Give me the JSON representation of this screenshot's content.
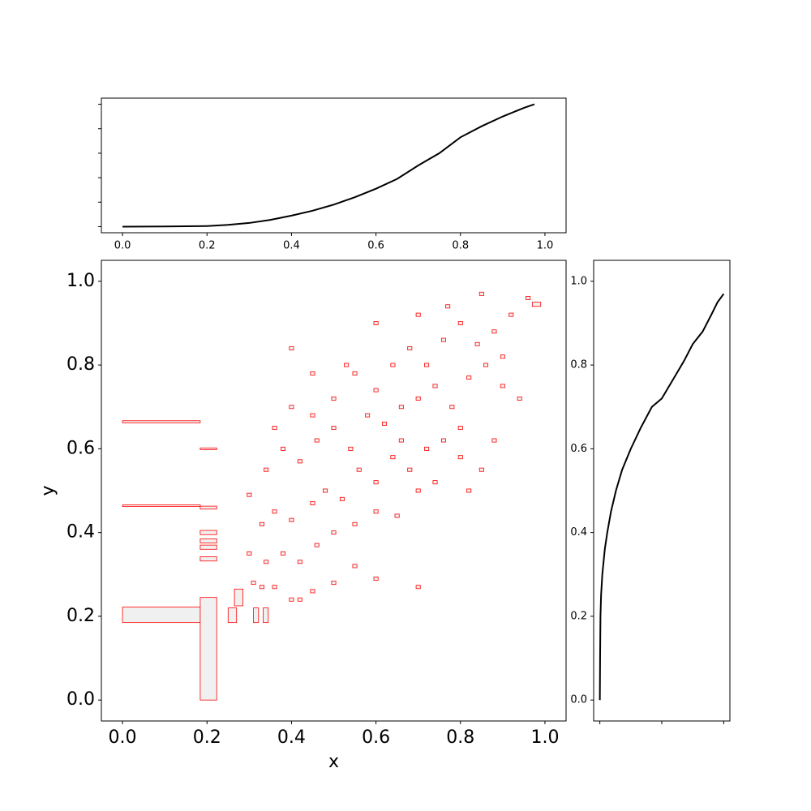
{
  "chart_data": [
    {
      "type": "rectangles",
      "xlabel": "x",
      "ylabel": "y",
      "xlim": [
        -0.05,
        1.05
      ],
      "ylim": [
        -0.05,
        1.05
      ],
      "xticks": [
        {
          "value": 0,
          "label": "0.0"
        },
        0.2,
        0.4,
        0.6,
        0.8,
        {
          "value": 1,
          "label": "1.0"
        }
      ],
      "yticks": [
        {
          "value": 0,
          "label": "0.0"
        },
        0.2,
        0.4,
        0.6,
        0.8,
        {
          "value": 1,
          "label": "1.0"
        }
      ],
      "color": "#ff0000",
      "fill": "#f0f0f0",
      "boxes": [
        [
          0,
          0.184,
          0.185,
          0.222
        ],
        [
          0.184,
          0.223,
          0,
          0.245
        ],
        [
          0,
          0.184,
          0.662,
          0.667
        ],
        [
          0,
          0.184,
          0.462,
          0.466
        ],
        [
          0.184,
          0.223,
          0.598,
          0.602
        ],
        [
          0.184,
          0.223,
          0.456,
          0.463
        ],
        [
          0.184,
          0.223,
          0.395,
          0.405
        ],
        [
          0.184,
          0.223,
          0.375,
          0.385
        ],
        [
          0.184,
          0.223,
          0.36,
          0.37
        ],
        [
          0.184,
          0.223,
          0.332,
          0.342
        ],
        [
          0.25,
          0.27,
          0.185,
          0.22
        ],
        [
          0.265,
          0.285,
          0.225,
          0.265
        ],
        [
          0.31,
          0.322,
          0.185,
          0.22
        ],
        [
          0.333,
          0.345,
          0.185,
          0.22
        ],
        [
          0.305,
          0.315,
          0.276,
          0.284
        ],
        [
          0.325,
          0.335,
          0.266,
          0.274
        ],
        [
          0.355,
          0.365,
          0.266,
          0.274
        ],
        [
          0.395,
          0.405,
          0.236,
          0.244
        ],
        [
          0.415,
          0.425,
          0.236,
          0.244
        ],
        [
          0.445,
          0.455,
          0.256,
          0.264
        ],
        [
          0.495,
          0.505,
          0.276,
          0.284
        ],
        [
          0.545,
          0.555,
          0.316,
          0.324
        ],
        [
          0.595,
          0.605,
          0.286,
          0.294
        ],
        [
          0.695,
          0.705,
          0.266,
          0.274
        ],
        [
          0.295,
          0.305,
          0.346,
          0.354
        ],
        [
          0.335,
          0.345,
          0.326,
          0.334
        ],
        [
          0.375,
          0.385,
          0.346,
          0.354
        ],
        [
          0.415,
          0.425,
          0.326,
          0.334
        ],
        [
          0.455,
          0.465,
          0.366,
          0.374
        ],
        [
          0.495,
          0.505,
          0.396,
          0.404
        ],
        [
          0.545,
          0.555,
          0.416,
          0.424
        ],
        [
          0.595,
          0.605,
          0.446,
          0.454
        ],
        [
          0.645,
          0.655,
          0.436,
          0.444
        ],
        [
          0.695,
          0.705,
          0.496,
          0.504
        ],
        [
          0.325,
          0.335,
          0.416,
          0.424
        ],
        [
          0.355,
          0.365,
          0.446,
          0.454
        ],
        [
          0.395,
          0.405,
          0.426,
          0.434
        ],
        [
          0.445,
          0.455,
          0.466,
          0.474
        ],
        [
          0.475,
          0.485,
          0.496,
          0.504
        ],
        [
          0.515,
          0.525,
          0.476,
          0.484
        ],
        [
          0.555,
          0.565,
          0.546,
          0.554
        ],
        [
          0.595,
          0.605,
          0.516,
          0.524
        ],
        [
          0.635,
          0.645,
          0.576,
          0.584
        ],
        [
          0.675,
          0.685,
          0.546,
          0.554
        ],
        [
          0.715,
          0.725,
          0.596,
          0.604
        ],
        [
          0.755,
          0.765,
          0.616,
          0.624
        ],
        [
          0.795,
          0.805,
          0.576,
          0.584
        ],
        [
          0.845,
          0.855,
          0.546,
          0.554
        ],
        [
          0.295,
          0.305,
          0.486,
          0.494
        ],
        [
          0.335,
          0.345,
          0.546,
          0.554
        ],
        [
          0.375,
          0.385,
          0.596,
          0.604
        ],
        [
          0.415,
          0.425,
          0.566,
          0.574
        ],
        [
          0.455,
          0.465,
          0.616,
          0.624
        ],
        [
          0.495,
          0.505,
          0.646,
          0.654
        ],
        [
          0.535,
          0.545,
          0.596,
          0.604
        ],
        [
          0.575,
          0.585,
          0.676,
          0.684
        ],
        [
          0.615,
          0.625,
          0.656,
          0.664
        ],
        [
          0.655,
          0.665,
          0.696,
          0.704
        ],
        [
          0.695,
          0.705,
          0.716,
          0.724
        ],
        [
          0.735,
          0.745,
          0.746,
          0.754
        ],
        [
          0.775,
          0.785,
          0.696,
          0.704
        ],
        [
          0.815,
          0.825,
          0.766,
          0.774
        ],
        [
          0.855,
          0.865,
          0.796,
          0.804
        ],
        [
          0.895,
          0.905,
          0.746,
          0.754
        ],
        [
          0.935,
          0.945,
          0.716,
          0.724
        ],
        [
          0.355,
          0.365,
          0.646,
          0.654
        ],
        [
          0.395,
          0.405,
          0.696,
          0.704
        ],
        [
          0.445,
          0.455,
          0.676,
          0.684
        ],
        [
          0.495,
          0.505,
          0.716,
          0.724
        ],
        [
          0.545,
          0.555,
          0.776,
          0.784
        ],
        [
          0.595,
          0.605,
          0.736,
          0.744
        ],
        [
          0.635,
          0.645,
          0.796,
          0.804
        ],
        [
          0.675,
          0.685,
          0.836,
          0.844
        ],
        [
          0.715,
          0.725,
          0.796,
          0.804
        ],
        [
          0.755,
          0.765,
          0.856,
          0.864
        ],
        [
          0.795,
          0.805,
          0.896,
          0.904
        ],
        [
          0.835,
          0.845,
          0.846,
          0.854
        ],
        [
          0.875,
          0.885,
          0.876,
          0.884
        ],
        [
          0.915,
          0.925,
          0.916,
          0.924
        ],
        [
          0.955,
          0.965,
          0.956,
          0.964
        ],
        [
          0.97,
          0.99,
          0.94,
          0.95
        ],
        [
          0.595,
          0.605,
          0.896,
          0.904
        ],
        [
          0.695,
          0.705,
          0.916,
          0.924
        ],
        [
          0.765,
          0.775,
          0.936,
          0.944
        ],
        [
          0.845,
          0.855,
          0.966,
          0.974
        ],
        [
          0.395,
          0.405,
          0.836,
          0.844
        ],
        [
          0.525,
          0.535,
          0.796,
          0.804
        ],
        [
          0.445,
          0.455,
          0.776,
          0.784
        ],
        [
          0.655,
          0.665,
          0.616,
          0.624
        ],
        [
          0.735,
          0.745,
          0.516,
          0.524
        ],
        [
          0.795,
          0.805,
          0.646,
          0.654
        ],
        [
          0.875,
          0.885,
          0.616,
          0.624
        ],
        [
          0.895,
          0.905,
          0.816,
          0.824
        ],
        [
          0.815,
          0.825,
          0.496,
          0.504
        ]
      ]
    },
    {
      "type": "line",
      "xlim": [
        -0.05,
        1.05
      ],
      "ylim": [
        -0.05,
        1.05
      ],
      "xticks": [
        {
          "value": 0,
          "label": "0.0"
        },
        0.2,
        0.4,
        0.6,
        0.8,
        {
          "value": 1,
          "label": "1.0"
        }
      ],
      "yticks": [
        0,
        0.2,
        0.4,
        0.6,
        0.8,
        1
      ],
      "ytick_labels": false,
      "series": [
        {
          "color": "#000000",
          "x": [
            0,
            0.1,
            0.2,
            0.25,
            0.3,
            0.35,
            0.4,
            0.45,
            0.5,
            0.55,
            0.6,
            0.65,
            0.7,
            0.75,
            0.8,
            0.85,
            0.9,
            0.95,
            0.975
          ],
          "values": [
            0,
            0.001,
            0.005,
            0.015,
            0.03,
            0.055,
            0.09,
            0.13,
            0.18,
            0.24,
            0.31,
            0.39,
            0.5,
            0.6,
            0.73,
            0.82,
            0.9,
            0.97,
            1
          ]
        }
      ]
    },
    {
      "type": "line",
      "xlim": [
        -0.05,
        1.05
      ],
      "ylim": [
        -0.05,
        1.05
      ],
      "xticks": [
        0,
        0.5,
        1
      ],
      "xtick_labels": false,
      "yticks": [
        {
          "value": 0,
          "label": "0.0"
        },
        0.2,
        0.4,
        0.6,
        0.8,
        {
          "value": 1,
          "label": "1.0"
        }
      ],
      "series": [
        {
          "color": "#000000",
          "x": [
            0,
            0.002,
            0.005,
            0.01,
            0.02,
            0.04,
            0.06,
            0.09,
            0.13,
            0.18,
            0.25,
            0.33,
            0.42,
            0.5,
            0.6,
            0.68,
            0.75,
            0.83,
            0.9,
            0.95,
            1
          ],
          "values": [
            0,
            0.1,
            0.2,
            0.25,
            0.3,
            0.36,
            0.4,
            0.45,
            0.5,
            0.55,
            0.6,
            0.65,
            0.7,
            0.72,
            0.77,
            0.81,
            0.85,
            0.88,
            0.92,
            0.95,
            0.97
          ]
        }
      ]
    }
  ]
}
